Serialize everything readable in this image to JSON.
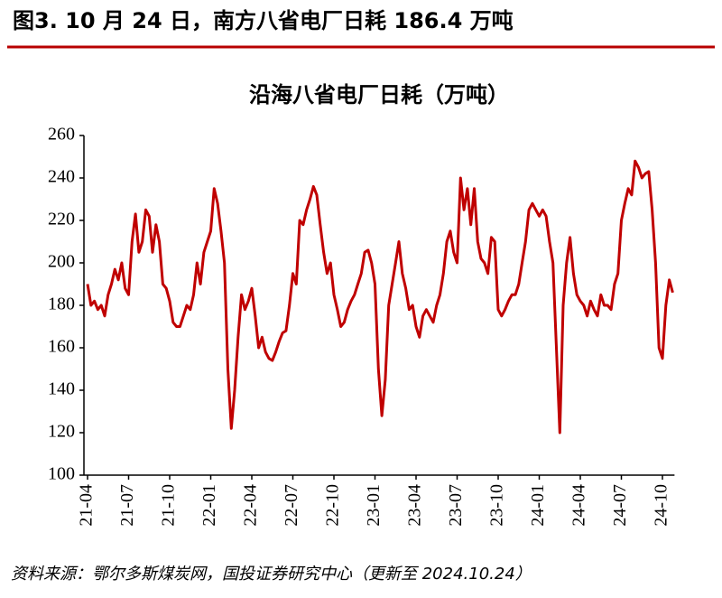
{
  "header": {
    "title": "图3. 10 月 24 日，南方八省电厂日耗 186.4 万吨"
  },
  "chart_data": {
    "type": "line",
    "title": "沿海八省电厂日耗（万吨）",
    "color": "#c00000",
    "categories": [
      "21-04",
      null,
      null,
      null,
      null,
      null,
      null,
      null,
      null,
      null,
      null,
      null,
      "21-07",
      null,
      null,
      null,
      null,
      null,
      null,
      null,
      null,
      null,
      null,
      null,
      "21-10",
      null,
      null,
      null,
      null,
      null,
      null,
      null,
      null,
      null,
      null,
      null,
      "22-01",
      null,
      null,
      null,
      null,
      null,
      null,
      null,
      null,
      null,
      null,
      null,
      "22-04",
      null,
      null,
      null,
      null,
      null,
      null,
      null,
      null,
      null,
      null,
      null,
      "22-07",
      null,
      null,
      null,
      null,
      null,
      null,
      null,
      null,
      null,
      null,
      null,
      "22-10",
      null,
      null,
      null,
      null,
      null,
      null,
      null,
      null,
      null,
      null,
      null,
      "23-01",
      null,
      null,
      null,
      null,
      null,
      null,
      null,
      null,
      null,
      null,
      null,
      "23-04",
      null,
      null,
      null,
      null,
      null,
      null,
      null,
      null,
      null,
      null,
      null,
      "23-07",
      null,
      null,
      null,
      null,
      null,
      null,
      null,
      null,
      null,
      null,
      null,
      "23-10",
      null,
      null,
      null,
      null,
      null,
      null,
      null,
      null,
      null,
      null,
      null,
      "24-01",
      null,
      null,
      null,
      null,
      null,
      null,
      null,
      null,
      null,
      null,
      null,
      "24-04",
      null,
      null,
      null,
      null,
      null,
      null,
      null,
      null,
      null,
      null,
      null,
      "24-07",
      null,
      null,
      null,
      null,
      null,
      null,
      null,
      null,
      null,
      null,
      null,
      "24-10",
      null,
      null,
      null
    ],
    "values": [
      190,
      180,
      182,
      178,
      180,
      175,
      185,
      190,
      197,
      192,
      200,
      188,
      185,
      210,
      223,
      205,
      210,
      225,
      222,
      205,
      218,
      210,
      190,
      188,
      182,
      172,
      170,
      170,
      175,
      180,
      178,
      185,
      200,
      190,
      205,
      210,
      215,
      235,
      228,
      215,
      200,
      150,
      122,
      140,
      165,
      185,
      178,
      182,
      188,
      175,
      160,
      165,
      158,
      155,
      154,
      158,
      163,
      167,
      168,
      180,
      195,
      190,
      220,
      218,
      225,
      230,
      236,
      232,
      218,
      205,
      195,
      200,
      185,
      178,
      170,
      172,
      178,
      182,
      185,
      190,
      195,
      205,
      206,
      200,
      190,
      150,
      128,
      145,
      180,
      190,
      200,
      210,
      195,
      188,
      178,
      180,
      170,
      165,
      175,
      178,
      175,
      172,
      180,
      185,
      195,
      210,
      215,
      205,
      200,
      240,
      225,
      235,
      218,
      235,
      210,
      202,
      200,
      195,
      212,
      210,
      178,
      175,
      178,
      182,
      185,
      185,
      190,
      200,
      210,
      225,
      228,
      225,
      222,
      225,
      222,
      210,
      200,
      160,
      120,
      180,
      200,
      212,
      195,
      185,
      182,
      180,
      175,
      182,
      178,
      175,
      185,
      180,
      180,
      178,
      190,
      195,
      220,
      228,
      235,
      232,
      248,
      245,
      240,
      242,
      243,
      225,
      200,
      160,
      155,
      180,
      192,
      186
    ],
    "ylim": [
      100,
      260
    ],
    "yticks": [
      100,
      120,
      140,
      160,
      180,
      200,
      220,
      240,
      260
    ]
  },
  "footer": {
    "source": "资料来源：鄂尔多斯煤炭网，国投证券研究中心（更新至 2024.10.24）"
  }
}
